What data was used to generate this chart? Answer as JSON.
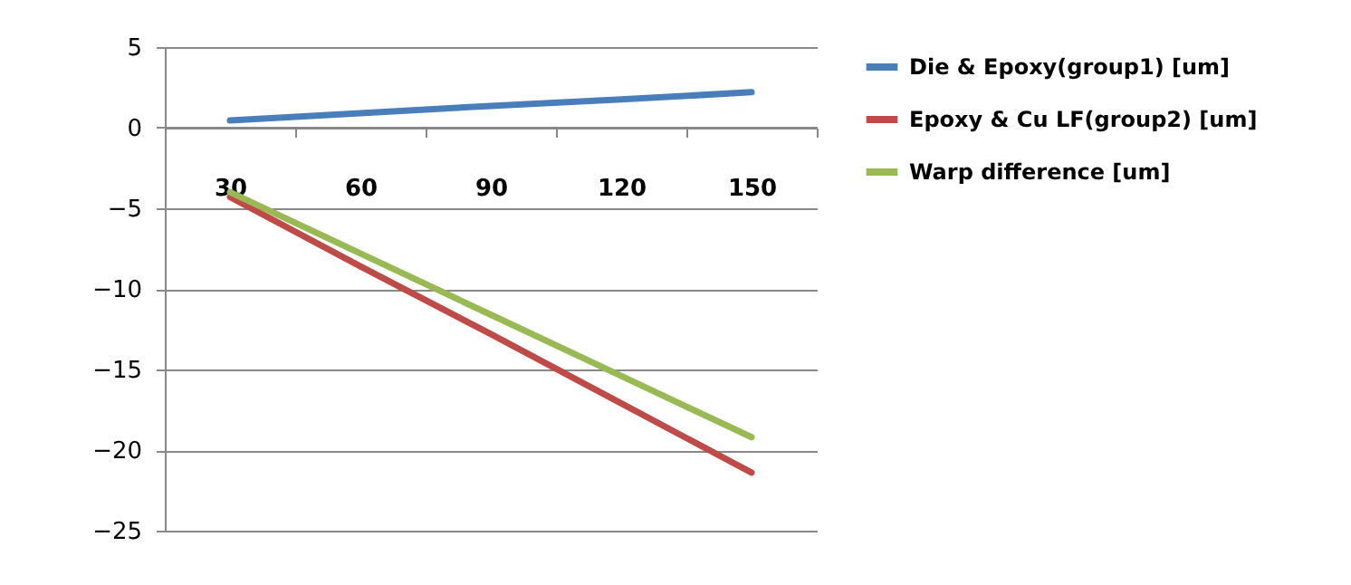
{
  "chart_data": {
    "type": "line",
    "categories": [
      "30",
      "60",
      "90",
      "120",
      "150"
    ],
    "series": [
      {
        "name": "Die & Epoxy(group1) [um]",
        "color": "#4a7ebb",
        "values": [
          0.45,
          0.9,
          1.35,
          1.75,
          2.2
        ]
      },
      {
        "name": "Epoxy & Cu LF(group2) [um]",
        "color": "#be4b48",
        "values": [
          -4.3,
          -8.6,
          -12.8,
          -17.1,
          -21.4
        ]
      },
      {
        "name": "Warp difference [um]",
        "color": "#98b954",
        "values": [
          -4.0,
          -7.8,
          -11.6,
          -15.4,
          -19.2
        ]
      }
    ],
    "ylim": [
      -25,
      5
    ],
    "yticks": [
      -25,
      -20,
      -15,
      -10,
      -5,
      0,
      5
    ],
    "grid": "y",
    "legend": "right",
    "marker": "none",
    "line_style": "solid"
  }
}
